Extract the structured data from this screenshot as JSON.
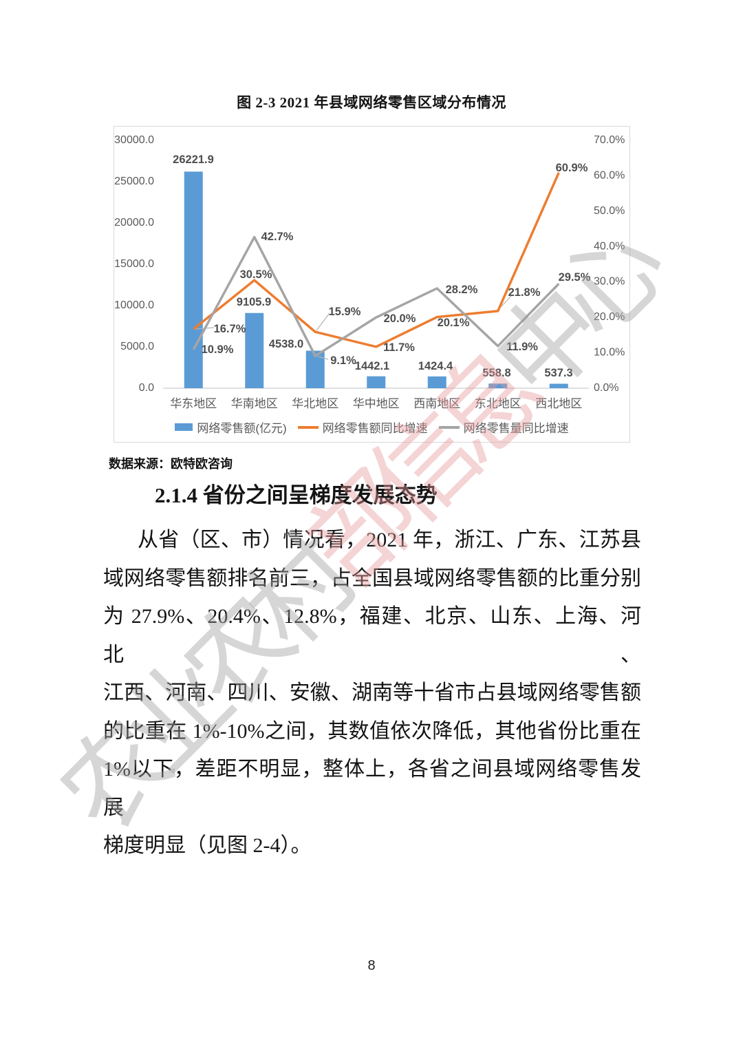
{
  "page": {
    "figure_caption": "图 2-3 2021 年县域网络零售区域分布情况",
    "source_note": "数据来源：欧特欧咨询",
    "section_heading": "2.1.4 省份之间呈梯度发展态势",
    "body_lines": [
      "从省（区、市）情况看，2021 年，浙江、广东、江苏县",
      "域网络零售额排名前三，占全国县域网络零售额的比重分别",
      "为 27.9%、20.4%、12.8%，福建、北京、山东、上海、河北、",
      "江西、河南、四川、安徽、湖南等十省市占县域网络零售额",
      "的比重在 1%-10%之间，其数值依次降低，其他省份比重在",
      "1%以下，差距不明显，整体上，各省之间县域网络零售发展",
      "梯度明显（见图 2-4）。"
    ],
    "page_number": "8",
    "watermark": {
      "text": "农业农村部信息中心",
      "gray_color": "#a0a0a0",
      "pink_color": "#e59a9d"
    }
  },
  "chart_data": {
    "type": "bar+line combo",
    "categories": [
      "华东地区",
      "华南地区",
      "华北地区",
      "华中地区",
      "西南地区",
      "东北地区",
      "西北地区"
    ],
    "bar_series": {
      "name": "网络零售额(亿元)",
      "color": "#5B9BD5",
      "values": [
        26221.9,
        9105.9,
        4538.0,
        1442.1,
        1424.4,
        558.8,
        537.3
      ],
      "labels": [
        "26221.9",
        "9105.9",
        "4538.0",
        "1442.1",
        "1424.4",
        "558.8",
        "537.3"
      ]
    },
    "line_series": [
      {
        "name": "网络零售额同比增速",
        "color": "#ED7D31",
        "values": [
          16.7,
          30.5,
          15.9,
          11.7,
          20.1,
          21.8,
          60.9
        ],
        "labels": [
          "16.7%",
          "30.5%",
          "15.9%",
          "11.7%",
          "20.1%",
          "21.8%",
          "60.9%"
        ]
      },
      {
        "name": "网络零售量同比增速",
        "color": "#A5A5A5",
        "values": [
          10.9,
          42.7,
          9.1,
          20.0,
          28.2,
          11.9,
          29.5
        ],
        "labels": [
          "10.9%",
          "42.7%",
          "9.1%",
          "20.0%",
          "28.2%",
          "11.9%",
          "29.5%"
        ]
      }
    ],
    "left_axis": {
      "min": 0,
      "max": 30000,
      "ticks": [
        "30000.0",
        "25000.0",
        "20000.0",
        "15000.0",
        "10000.0",
        "5000.0",
        "0.0"
      ]
    },
    "right_axis": {
      "min": 0,
      "max": 70,
      "ticks": [
        "70.0%",
        "60.0%",
        "50.0%",
        "40.0%",
        "30.0%",
        "20.0%",
        "10.0%",
        "0.0%"
      ]
    },
    "grid": "off",
    "legend_position": "bottom"
  }
}
